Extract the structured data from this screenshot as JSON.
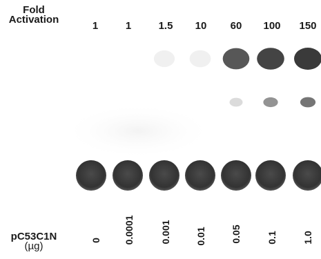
{
  "fold_activation": {
    "label_line1": "Fold",
    "label_line2": "Activation",
    "values": [
      "1",
      "1",
      "1.5",
      "10",
      "60",
      "100",
      "150"
    ]
  },
  "dose": {
    "label_line1": "pC53C1N",
    "label_line2": "(µg)",
    "values": [
      "0",
      "0.0001",
      "0.001",
      "0.01",
      "0.05",
      "0.1",
      "1.0"
    ]
  },
  "spots": {
    "acetylated_upper": [
      0.0,
      0.0,
      0.03,
      0.08,
      0.85,
      0.95,
      1.0
    ],
    "acetylated_lower": [
      0.0,
      0.0,
      0.0,
      0.0,
      0.18,
      0.55,
      0.7
    ],
    "unacetylated": [
      1.0,
      1.0,
      1.0,
      1.0,
      1.0,
      1.0,
      1.0
    ]
  },
  "colors": {
    "spot": "#3a3a3a",
    "background": "#ffffff"
  }
}
